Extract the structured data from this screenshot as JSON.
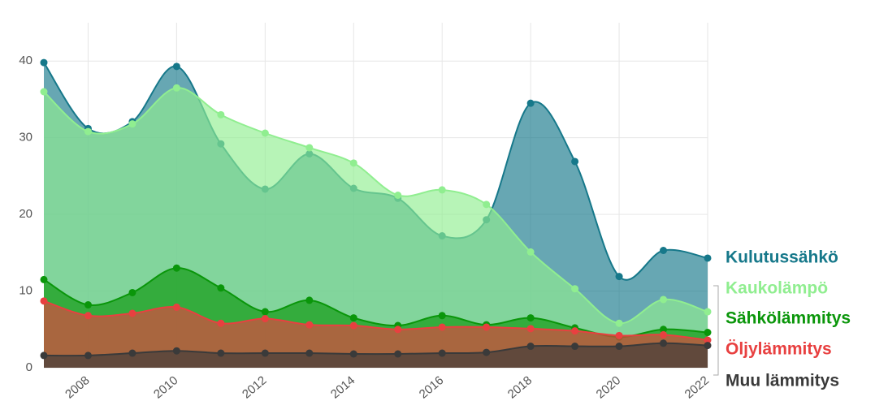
{
  "chart_data": {
    "type": "area",
    "x": [
      2007,
      2008,
      2009,
      2010,
      2011,
      2012,
      2013,
      2014,
      2015,
      2016,
      2017,
      2018,
      2019,
      2020,
      2021,
      2022
    ],
    "xlim": [
      2007,
      2022
    ],
    "xticks": [
      2008,
      2010,
      2012,
      2014,
      2016,
      2018,
      2020,
      2022
    ],
    "ylim": [
      0,
      45
    ],
    "yticks": [
      0,
      10,
      20,
      30,
      40
    ],
    "grid": true,
    "series": [
      {
        "name": "Kulutussähkö",
        "color": "#16788a",
        "values": [
          39.8,
          31.2,
          32.1,
          39.3,
          29.2,
          23.3,
          27.9,
          23.4,
          22.1,
          17.2,
          19.3,
          34.5,
          26.9,
          11.9,
          15.3,
          14.3
        ]
      },
      {
        "name": "Kaukolämpö",
        "color": "#90ee90",
        "values": [
          36,
          30.8,
          31.8,
          36.5,
          33,
          30.6,
          28.7,
          26.7,
          22.5,
          23.2,
          21.3,
          15.1,
          10.3,
          5.8,
          8.9,
          7.3
        ]
      },
      {
        "name": "Sähkölämmitys",
        "color": "#0a960a",
        "values": [
          11.5,
          8.2,
          9.8,
          13,
          10.4,
          7.3,
          8.8,
          6.5,
          5.5,
          6.8,
          5.6,
          6.5,
          5.2,
          4.0,
          5.0,
          4.6
        ]
      },
      {
        "name": "Öljylämmitys",
        "color": "#e84040",
        "values": [
          8.7,
          6.8,
          7.1,
          7.9,
          5.8,
          6.4,
          5.6,
          5.5,
          5.0,
          5.3,
          5.3,
          5.1,
          4.8,
          4.2,
          4.3,
          3.6
        ]
      },
      {
        "name": "Muu lämmitys",
        "color": "#3a3a3a",
        "values": [
          1.6,
          1.6,
          1.9,
          2.2,
          1.9,
          1.9,
          1.9,
          1.8,
          1.8,
          1.9,
          2.0,
          2.8,
          2.8,
          2.8,
          3.2,
          2.9
        ]
      }
    ]
  }
}
